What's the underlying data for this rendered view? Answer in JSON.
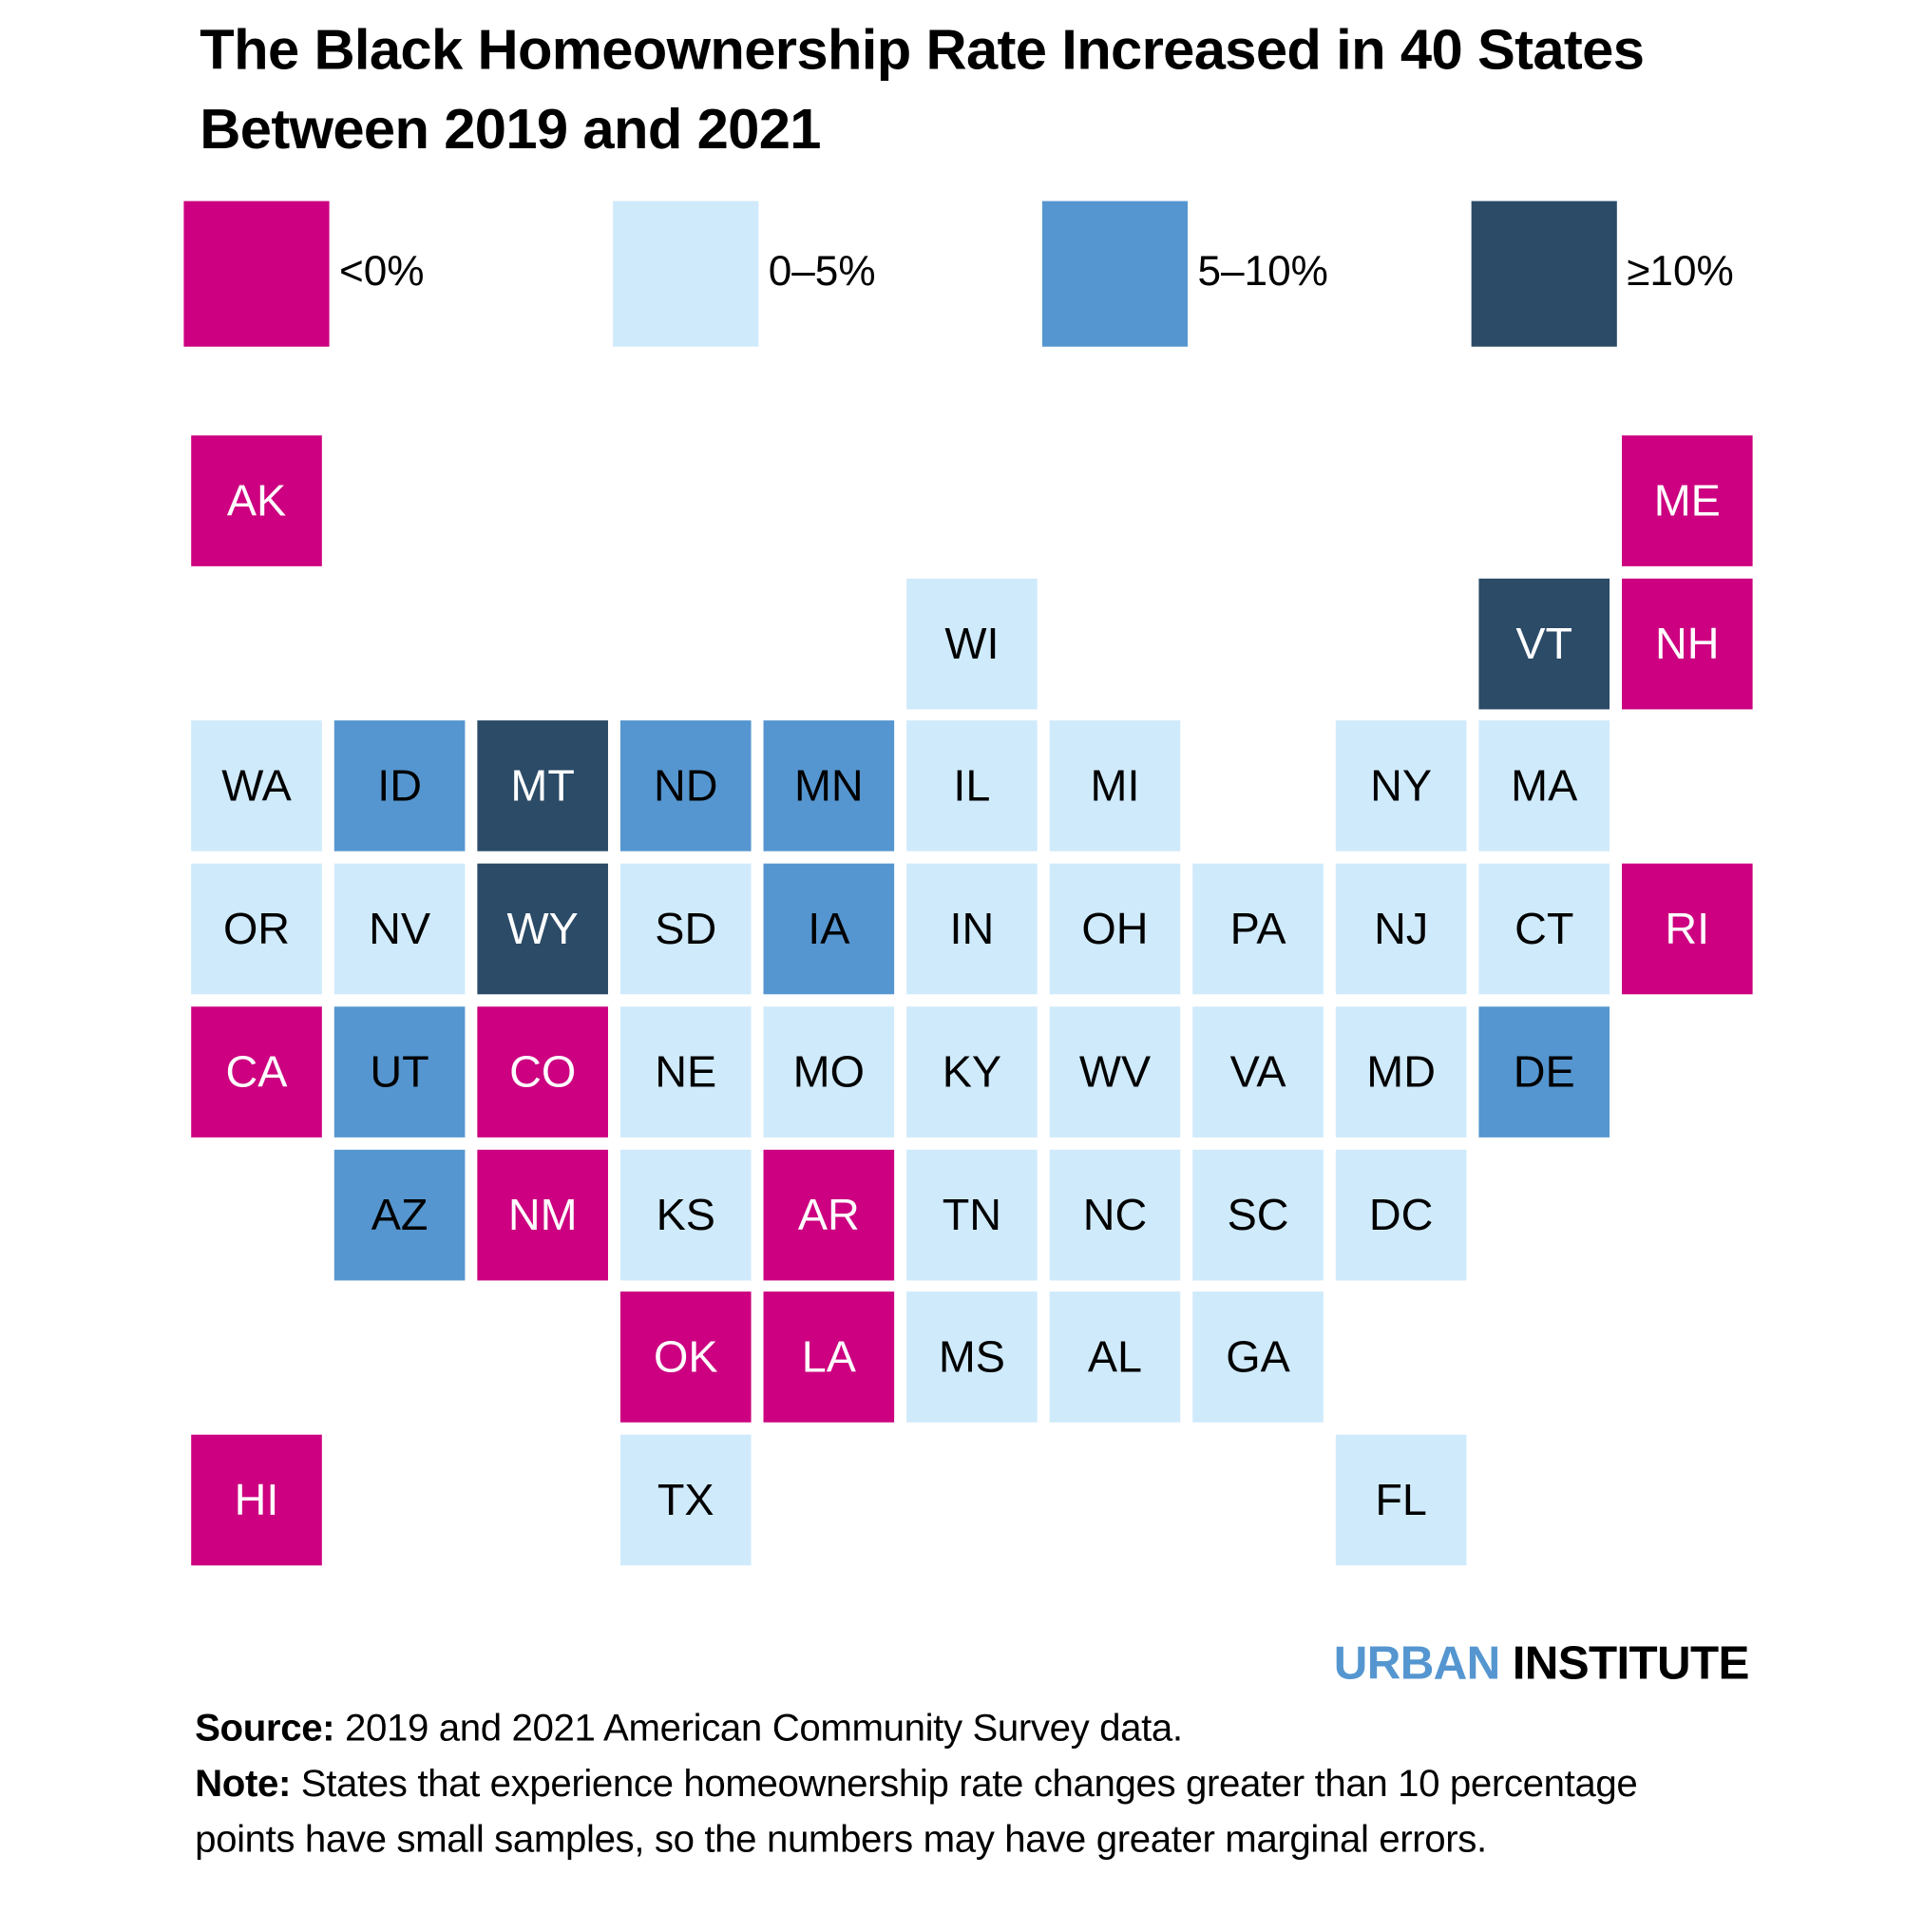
{
  "title": "The Black Homeownership Rate Increased in 40 States Between 2019 and 2021",
  "colors": {
    "neg": "#CC0080",
    "low": "#CFEAFB",
    "mid": "#5596D0",
    "high": "#2B4B67",
    "brand_blue": "#5596D0"
  },
  "chart_data": {
    "type": "tile-map",
    "legend": [
      {
        "key": "neg",
        "label": "<0%"
      },
      {
        "key": "low",
        "label": "0–5%"
      },
      {
        "key": "mid",
        "label": "5–10%"
      },
      {
        "key": "high",
        "label": "≥10%"
      }
    ],
    "states": [
      {
        "abbr": "AK",
        "row": 0,
        "col": 0,
        "cat": "neg"
      },
      {
        "abbr": "ME",
        "row": 0,
        "col": 10,
        "cat": "neg"
      },
      {
        "abbr": "WI",
        "row": 1,
        "col": 5,
        "cat": "low"
      },
      {
        "abbr": "VT",
        "row": 1,
        "col": 9,
        "cat": "high"
      },
      {
        "abbr": "NH",
        "row": 1,
        "col": 10,
        "cat": "neg"
      },
      {
        "abbr": "WA",
        "row": 2,
        "col": 0,
        "cat": "low"
      },
      {
        "abbr": "ID",
        "row": 2,
        "col": 1,
        "cat": "mid"
      },
      {
        "abbr": "MT",
        "row": 2,
        "col": 2,
        "cat": "high"
      },
      {
        "abbr": "ND",
        "row": 2,
        "col": 3,
        "cat": "mid"
      },
      {
        "abbr": "MN",
        "row": 2,
        "col": 4,
        "cat": "mid"
      },
      {
        "abbr": "IL",
        "row": 2,
        "col": 5,
        "cat": "low"
      },
      {
        "abbr": "MI",
        "row": 2,
        "col": 6,
        "cat": "low"
      },
      {
        "abbr": "NY",
        "row": 2,
        "col": 8,
        "cat": "low"
      },
      {
        "abbr": "MA",
        "row": 2,
        "col": 9,
        "cat": "low"
      },
      {
        "abbr": "OR",
        "row": 3,
        "col": 0,
        "cat": "low"
      },
      {
        "abbr": "NV",
        "row": 3,
        "col": 1,
        "cat": "low"
      },
      {
        "abbr": "WY",
        "row": 3,
        "col": 2,
        "cat": "high"
      },
      {
        "abbr": "SD",
        "row": 3,
        "col": 3,
        "cat": "low"
      },
      {
        "abbr": "IA",
        "row": 3,
        "col": 4,
        "cat": "mid"
      },
      {
        "abbr": "IN",
        "row": 3,
        "col": 5,
        "cat": "low"
      },
      {
        "abbr": "OH",
        "row": 3,
        "col": 6,
        "cat": "low"
      },
      {
        "abbr": "PA",
        "row": 3,
        "col": 7,
        "cat": "low"
      },
      {
        "abbr": "NJ",
        "row": 3,
        "col": 8,
        "cat": "low"
      },
      {
        "abbr": "CT",
        "row": 3,
        "col": 9,
        "cat": "low"
      },
      {
        "abbr": "RI",
        "row": 3,
        "col": 10,
        "cat": "neg"
      },
      {
        "abbr": "CA",
        "row": 4,
        "col": 0,
        "cat": "neg"
      },
      {
        "abbr": "UT",
        "row": 4,
        "col": 1,
        "cat": "mid"
      },
      {
        "abbr": "CO",
        "row": 4,
        "col": 2,
        "cat": "neg"
      },
      {
        "abbr": "NE",
        "row": 4,
        "col": 3,
        "cat": "low"
      },
      {
        "abbr": "MO",
        "row": 4,
        "col": 4,
        "cat": "low"
      },
      {
        "abbr": "KY",
        "row": 4,
        "col": 5,
        "cat": "low"
      },
      {
        "abbr": "WV",
        "row": 4,
        "col": 6,
        "cat": "low"
      },
      {
        "abbr": "VA",
        "row": 4,
        "col": 7,
        "cat": "low"
      },
      {
        "abbr": "MD",
        "row": 4,
        "col": 8,
        "cat": "low"
      },
      {
        "abbr": "DE",
        "row": 4,
        "col": 9,
        "cat": "mid"
      },
      {
        "abbr": "AZ",
        "row": 5,
        "col": 1,
        "cat": "mid"
      },
      {
        "abbr": "NM",
        "row": 5,
        "col": 2,
        "cat": "neg"
      },
      {
        "abbr": "KS",
        "row": 5,
        "col": 3,
        "cat": "low"
      },
      {
        "abbr": "AR",
        "row": 5,
        "col": 4,
        "cat": "neg"
      },
      {
        "abbr": "TN",
        "row": 5,
        "col": 5,
        "cat": "low"
      },
      {
        "abbr": "NC",
        "row": 5,
        "col": 6,
        "cat": "low"
      },
      {
        "abbr": "SC",
        "row": 5,
        "col": 7,
        "cat": "low"
      },
      {
        "abbr": "DC",
        "row": 5,
        "col": 8,
        "cat": "low"
      },
      {
        "abbr": "OK",
        "row": 6,
        "col": 3,
        "cat": "neg"
      },
      {
        "abbr": "LA",
        "row": 6,
        "col": 4,
        "cat": "neg"
      },
      {
        "abbr": "MS",
        "row": 6,
        "col": 5,
        "cat": "low"
      },
      {
        "abbr": "AL",
        "row": 6,
        "col": 6,
        "cat": "low"
      },
      {
        "abbr": "GA",
        "row": 6,
        "col": 7,
        "cat": "low"
      },
      {
        "abbr": "HI",
        "row": 7,
        "col": 0,
        "cat": "neg"
      },
      {
        "abbr": "TX",
        "row": 7,
        "col": 3,
        "cat": "low"
      },
      {
        "abbr": "FL",
        "row": 7,
        "col": 8,
        "cat": "low"
      }
    ]
  },
  "brand": {
    "urban": "URBAN",
    "institute": "INSTITUTE"
  },
  "notes": {
    "source_label": "Source:",
    "source_text": " 2019 and 2021 American Community Survey data.",
    "note_label": "Note:",
    "note_text": " States that experience homeownership rate changes greater than 10 percentage points have small samples, so the numbers may have greater marginal errors."
  }
}
